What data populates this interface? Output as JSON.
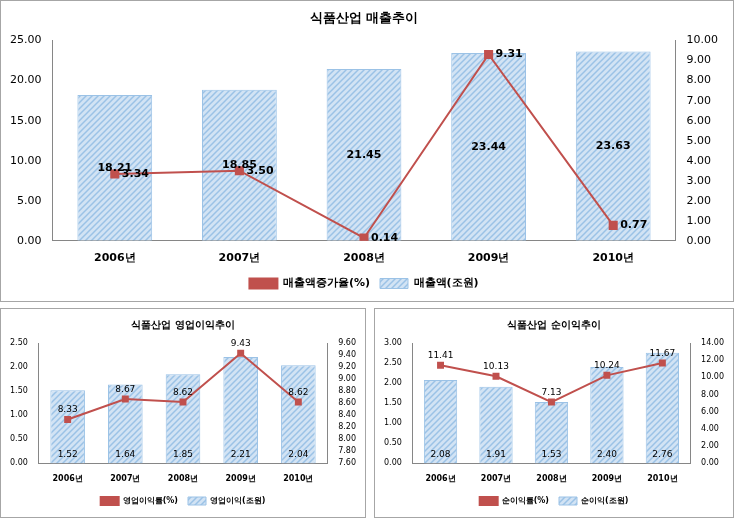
{
  "chart_data": [
    {
      "type": "bar",
      "title": "식품산업 매출추이",
      "categories": [
        "2006년",
        "2007년",
        "2008년",
        "2009년",
        "2010년"
      ],
      "series": [
        {
          "name": "매출액(조원)",
          "type": "bar",
          "color": "#9bc2e6",
          "values": [
            18.21,
            18.85,
            21.45,
            23.44,
            23.63
          ]
        },
        {
          "name": "매출액증가율(%)",
          "type": "line",
          "axis": "y2",
          "marker": "square",
          "color": "#c0504d",
          "values": [
            3.34,
            3.5,
            0.14,
            9.31,
            0.77
          ],
          "value_labels": [
            "3.34",
            "3.50",
            "0.14",
            "9.31",
            "0.77"
          ]
        }
      ],
      "ylim": [
        0,
        25
      ],
      "yticks": [
        {
          "value": 0,
          "label": "0.00"
        },
        {
          "value": 5,
          "label": "5.00"
        },
        {
          "value": 10,
          "label": "10.00"
        },
        {
          "value": 15,
          "label": "15.00"
        },
        {
          "value": 20,
          "label": "20.00"
        },
        {
          "value": 25,
          "label": "25.00"
        }
      ],
      "y2lim": [
        0,
        10
      ],
      "y2ticks": [
        {
          "value": 0,
          "label": "0.00"
        },
        {
          "value": 1,
          "label": "1.00"
        },
        {
          "value": 2,
          "label": "2.00"
        },
        {
          "value": 3,
          "label": "3.00"
        },
        {
          "value": 4,
          "label": "4.00"
        },
        {
          "value": 5,
          "label": "5.00"
        },
        {
          "value": 6,
          "label": "6.00"
        },
        {
          "value": 7,
          "label": "7.00"
        },
        {
          "value": 8,
          "label": "8.00"
        },
        {
          "value": 9,
          "label": "9.00"
        },
        {
          "value": 10,
          "label": "10.00"
        }
      ],
      "data_labels": true,
      "grid": false,
      "legend": "bottom"
    },
    {
      "type": "bar",
      "title": "식품산업 영업이익추이",
      "categories": [
        "2006년",
        "2007년",
        "2008년",
        "2009년",
        "2010년"
      ],
      "series": [
        {
          "name": "영업이익(조원)",
          "type": "bar",
          "color": "#9bc2e6",
          "values": [
            1.52,
            1.64,
            1.85,
            2.21,
            2.04
          ]
        },
        {
          "name": "영업이익률(%)",
          "type": "line",
          "axis": "y2",
          "marker": "square",
          "color": "#c0504d",
          "values": [
            8.33,
            8.67,
            8.62,
            9.43,
            8.62
          ]
        }
      ],
      "ylim": [
        0,
        2.5
      ],
      "yticks": [
        {
          "value": 0,
          "label": "0.00"
        },
        {
          "value": 0.5,
          "label": "0.50"
        },
        {
          "value": 1,
          "label": "1.00"
        },
        {
          "value": 1.5,
          "label": "1.50"
        },
        {
          "value": 2,
          "label": "2.00"
        },
        {
          "value": 2.5,
          "label": "2.50"
        }
      ],
      "y2lim": [
        7.6,
        9.6
      ],
      "y2ticks": [
        {
          "value": 7.6,
          "label": "7.60"
        },
        {
          "value": 7.8,
          "label": "7.80"
        },
        {
          "value": 8,
          "label": "8.00"
        },
        {
          "value": 8.2,
          "label": "8.20"
        },
        {
          "value": 8.4,
          "label": "8.40"
        },
        {
          "value": 8.6,
          "label": "8.60"
        },
        {
          "value": 8.8,
          "label": "8.80"
        },
        {
          "value": 9,
          "label": "9.00"
        },
        {
          "value": 9.2,
          "label": "9.20"
        },
        {
          "value": 9.4,
          "label": "9.40"
        },
        {
          "value": 9.6,
          "label": "9.60"
        }
      ],
      "data_labels": true,
      "grid": false,
      "legend": "bottom"
    },
    {
      "type": "bar",
      "title": "식품산업 순이익추이",
      "categories": [
        "2006년",
        "2007년",
        "2008년",
        "2009년",
        "2010년"
      ],
      "series": [
        {
          "name": "순이익(조원)",
          "type": "bar",
          "color": "#9bc2e6",
          "values": [
            2.08,
            1.91,
            1.53,
            2.4,
            2.76
          ],
          "value_labels": [
            "2.08",
            "1.91",
            "1.53",
            "2.40",
            "2.76"
          ]
        },
        {
          "name": "순이익률(%)",
          "type": "line",
          "axis": "y2",
          "marker": "square",
          "color": "#c0504d",
          "values": [
            11.41,
            10.13,
            7.13,
            10.24,
            11.67
          ]
        }
      ],
      "ylim": [
        0,
        3
      ],
      "yticks": [
        {
          "value": 0,
          "label": "0.00"
        },
        {
          "value": 0.5,
          "label": "0.50"
        },
        {
          "value": 1,
          "label": "1.00"
        },
        {
          "value": 1.5,
          "label": "1.50"
        },
        {
          "value": 2,
          "label": "2.00"
        },
        {
          "value": 2.5,
          "label": "2.50"
        },
        {
          "value": 3,
          "label": "3.00"
        }
      ],
      "y2lim": [
        0,
        14
      ],
      "y2ticks": [
        {
          "value": 0,
          "label": "0.00"
        },
        {
          "value": 2,
          "label": "2.00"
        },
        {
          "value": 4,
          "label": "4.00"
        },
        {
          "value": 6,
          "label": "6.00"
        },
        {
          "value": 8,
          "label": "8.00"
        },
        {
          "value": 10,
          "label": "10.00"
        },
        {
          "value": 12,
          "label": "12.00"
        },
        {
          "value": 14,
          "label": "14.00"
        }
      ],
      "data_labels": true,
      "grid": false,
      "legend": "bottom"
    }
  ]
}
